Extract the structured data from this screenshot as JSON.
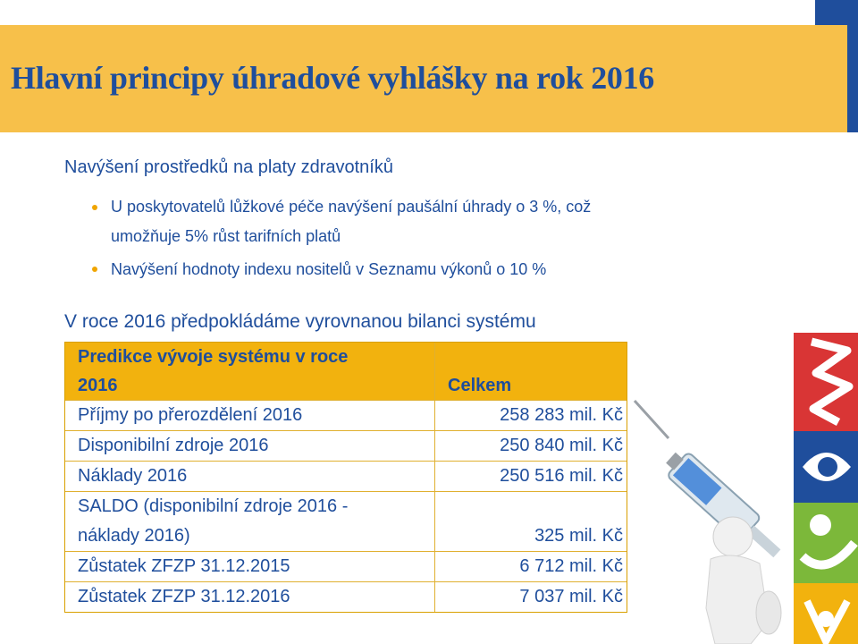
{
  "slide": {
    "title": "Hlavní principy úhradové vyhlášky na rok 2016"
  },
  "content": {
    "heading1": "Navýšení prostředků na platy zdravotníků",
    "bullets": [
      "U poskytovatelů lůžkové péče navýšení paušální úhrady o 3 %, což",
      "umožňuje 5% růst tarifních platů",
      "Navýšení hodnoty indexu nositelů v Seznamu výkonů o 10 %"
    ],
    "heading2": "V roce 2016 předpokládáme vyrovnanou bilanci systému"
  },
  "table": {
    "header": {
      "label_line1": "Predikce vývoje systému v roce",
      "label_line2": "2016",
      "total": "Celkem"
    },
    "rows": [
      {
        "label": "Příjmy po přerozdělení 2016",
        "value": "258 283 mil. Kč"
      },
      {
        "label": "Disponibilní zdroje 2016",
        "value": "250 840 mil. Kč"
      },
      {
        "label": "Náklady 2016",
        "value": "250 516 mil. Kč"
      },
      {
        "label_line1": "SALDO (disponibilní zdroje 2016 -",
        "label_line2": "náklady 2016)",
        "value": "325 mil. Kč"
      },
      {
        "label": "Zůstatek ZFZP 31.12.2015",
        "value": "6 712 mil. Kč"
      },
      {
        "label": "Zůstatek ZFZP 31.12.2016",
        "value": "7 037 mil. Kč"
      }
    ]
  },
  "colors": {
    "title_band": "#f7c04a",
    "text_blue": "#1f4e9c",
    "table_header": "#f2b20e",
    "bullet": "#f0a500"
  }
}
